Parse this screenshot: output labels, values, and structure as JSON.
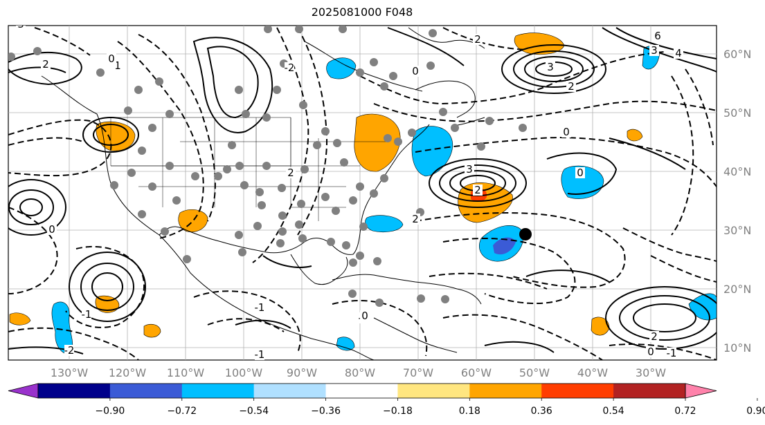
{
  "title": "2025081000 F048",
  "map": {
    "lon_labels": [
      "130°W",
      "120°W",
      "110°W",
      "100°W",
      "90°W",
      "80°W",
      "70°W",
      "60°W",
      "50°W",
      "40°W",
      "30°W"
    ],
    "lat_labels": [
      "60°N",
      "50°N",
      "40°N",
      "30°N",
      "20°N",
      "10°N"
    ],
    "contour_labels": [
      "3",
      "2",
      "1",
      "0",
      "-1",
      "-2",
      "2",
      "0",
      "3",
      "2",
      "6",
      "4",
      "3",
      "2",
      "0",
      "-1",
      "2",
      "3",
      "0",
      "0",
      "-1",
      "-1",
      "0",
      "2",
      "-2",
      "2",
      "-1",
      "0"
    ],
    "marker_icon": "black-dot-icon"
  },
  "colorbar": {
    "ticks": [
      "−0.90",
      "−0.72",
      "−0.54",
      "−0.36",
      "−0.18",
      "0.18",
      "0.36",
      "0.54",
      "0.72",
      "0.90"
    ],
    "colors": [
      "#9932cc",
      "#00008b",
      "#3b5bd6",
      "#00bfff",
      "#b0e0ff",
      "#ffffff",
      "#ffe680",
      "#ffa500",
      "#ff3d00",
      "#b22222",
      "#ff82ab"
    ]
  }
}
